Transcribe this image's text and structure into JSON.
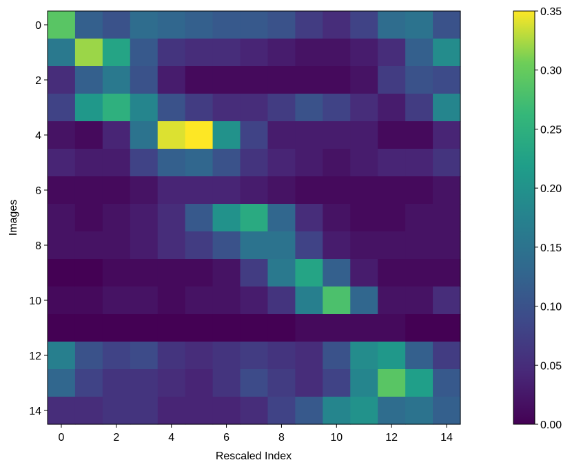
{
  "chart_data": {
    "type": "heatmap",
    "title": "",
    "xlabel": "Rescaled Index",
    "ylabel": "Images",
    "x_ticks": [
      "0",
      "2",
      "4",
      "6",
      "8",
      "10",
      "12",
      "14"
    ],
    "y_ticks": [
      "0",
      "2",
      "4",
      "6",
      "8",
      "10",
      "12",
      "14"
    ],
    "colorbar": {
      "min": 0.0,
      "max": 0.35,
      "ticks": [
        "0.00",
        "0.05",
        "0.10",
        "0.15",
        "0.20",
        "0.25",
        "0.30",
        "0.35"
      ],
      "colormap": "viridis"
    },
    "matrix": [
      [
        0.29,
        0.12,
        0.1,
        0.14,
        0.13,
        0.12,
        0.11,
        0.11,
        0.1,
        0.07,
        0.05,
        0.08,
        0.14,
        0.15,
        0.1
      ],
      [
        0.16,
        0.32,
        0.23,
        0.11,
        0.06,
        0.05,
        0.05,
        0.04,
        0.03,
        0.02,
        0.02,
        0.03,
        0.05,
        0.12,
        0.19
      ],
      [
        0.05,
        0.12,
        0.16,
        0.1,
        0.03,
        0.01,
        0.01,
        0.01,
        0.01,
        0.01,
        0.01,
        0.02,
        0.07,
        0.1,
        0.09
      ],
      [
        0.08,
        0.21,
        0.25,
        0.18,
        0.1,
        0.07,
        0.05,
        0.05,
        0.07,
        0.1,
        0.08,
        0.05,
        0.03,
        0.07,
        0.18
      ],
      [
        0.02,
        0.01,
        0.04,
        0.15,
        0.34,
        0.35,
        0.2,
        0.08,
        0.03,
        0.03,
        0.03,
        0.03,
        0.01,
        0.01,
        0.04
      ],
      [
        0.04,
        0.03,
        0.03,
        0.08,
        0.12,
        0.13,
        0.1,
        0.06,
        0.04,
        0.03,
        0.02,
        0.03,
        0.04,
        0.04,
        0.06
      ],
      [
        0.01,
        0.01,
        0.01,
        0.02,
        0.04,
        0.04,
        0.04,
        0.03,
        0.02,
        0.01,
        0.01,
        0.01,
        0.01,
        0.01,
        0.02
      ],
      [
        0.02,
        0.01,
        0.02,
        0.03,
        0.05,
        0.11,
        0.2,
        0.24,
        0.13,
        0.05,
        0.02,
        0.01,
        0.01,
        0.02,
        0.02
      ],
      [
        0.02,
        0.02,
        0.02,
        0.03,
        0.05,
        0.07,
        0.1,
        0.15,
        0.15,
        0.08,
        0.03,
        0.02,
        0.02,
        0.02,
        0.02
      ],
      [
        0.0,
        0.0,
        0.01,
        0.01,
        0.01,
        0.01,
        0.02,
        0.07,
        0.16,
        0.23,
        0.12,
        0.03,
        0.01,
        0.01,
        0.01
      ],
      [
        0.01,
        0.01,
        0.02,
        0.02,
        0.01,
        0.02,
        0.02,
        0.03,
        0.06,
        0.17,
        0.28,
        0.13,
        0.02,
        0.02,
        0.05
      ],
      [
        0.0,
        0.0,
        0.0,
        0.0,
        0.0,
        0.0,
        0.0,
        0.0,
        0.0,
        0.01,
        0.01,
        0.01,
        0.01,
        0.0,
        0.0
      ],
      [
        0.17,
        0.1,
        0.08,
        0.09,
        0.06,
        0.05,
        0.06,
        0.07,
        0.06,
        0.05,
        0.1,
        0.19,
        0.21,
        0.12,
        0.07
      ],
      [
        0.13,
        0.08,
        0.06,
        0.06,
        0.05,
        0.04,
        0.06,
        0.09,
        0.07,
        0.05,
        0.08,
        0.18,
        0.29,
        0.22,
        0.11
      ],
      [
        0.05,
        0.05,
        0.06,
        0.06,
        0.04,
        0.04,
        0.04,
        0.05,
        0.08,
        0.11,
        0.18,
        0.2,
        0.14,
        0.15,
        0.12
      ]
    ]
  }
}
